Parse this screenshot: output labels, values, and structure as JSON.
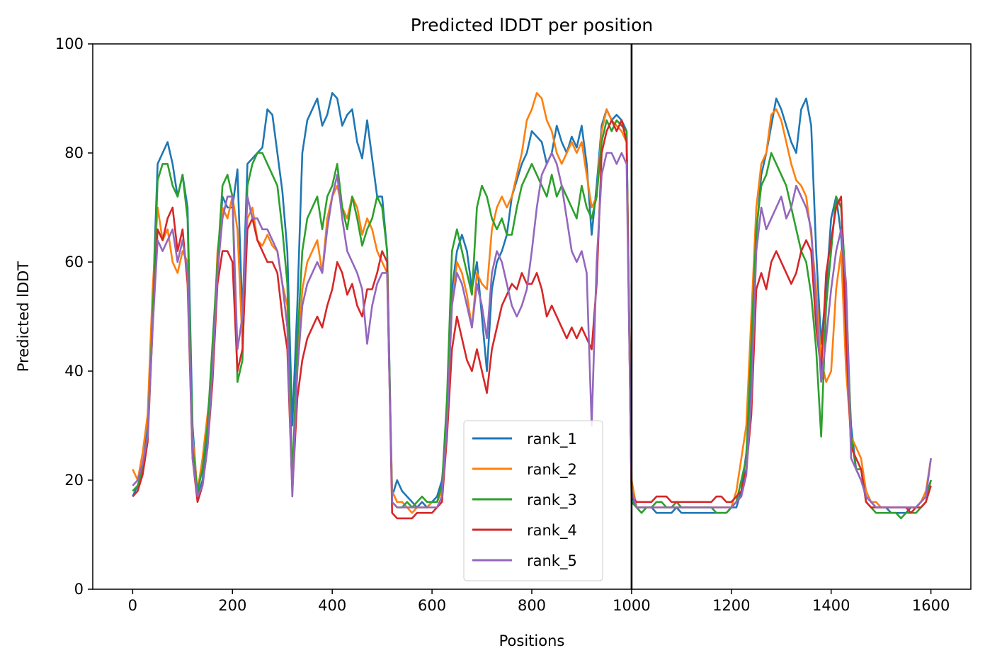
{
  "chart_data": {
    "type": "line",
    "title": "Predicted lDDT per position",
    "xlabel": "Positions",
    "ylabel": "Predicted lDDT",
    "xlim": [
      -80,
      1680
    ],
    "ylim": [
      0,
      100
    ],
    "x_ticks": [
      0,
      200,
      400,
      600,
      800,
      1000,
      1200,
      1400,
      1600
    ],
    "y_ticks": [
      0,
      20,
      40,
      60,
      80,
      100
    ],
    "grid": false,
    "legend_position": "lower center",
    "chain_break": {
      "x": 1000,
      "color": "#000000"
    },
    "x": [
      0,
      10,
      20,
      30,
      40,
      50,
      60,
      70,
      80,
      90,
      100,
      110,
      120,
      130,
      140,
      150,
      160,
      170,
      180,
      190,
      200,
      210,
      220,
      230,
      240,
      250,
      260,
      270,
      280,
      290,
      300,
      310,
      320,
      330,
      340,
      350,
      360,
      370,
      380,
      390,
      400,
      410,
      420,
      430,
      440,
      450,
      460,
      470,
      480,
      490,
      500,
      510,
      520,
      530,
      540,
      550,
      560,
      570,
      580,
      590,
      600,
      610,
      620,
      630,
      640,
      650,
      660,
      670,
      680,
      690,
      700,
      710,
      720,
      730,
      740,
      750,
      760,
      770,
      780,
      790,
      800,
      810,
      820,
      830,
      840,
      850,
      860,
      870,
      880,
      890,
      900,
      910,
      920,
      930,
      940,
      950,
      960,
      970,
      980,
      990,
      1000,
      1010,
      1020,
      1030,
      1040,
      1050,
      1060,
      1070,
      1080,
      1090,
      1100,
      1110,
      1120,
      1130,
      1140,
      1150,
      1160,
      1170,
      1180,
      1190,
      1200,
      1210,
      1220,
      1230,
      1240,
      1250,
      1260,
      1270,
      1280,
      1290,
      1300,
      1310,
      1320,
      1330,
      1340,
      1350,
      1360,
      1370,
      1380,
      1390,
      1400,
      1410,
      1420,
      1430,
      1440,
      1450,
      1460,
      1470,
      1480,
      1490,
      1500,
      1510,
      1520,
      1530,
      1540,
      1550,
      1560,
      1570,
      1580,
      1590,
      1600
    ],
    "series": [
      {
        "name": "rank_1",
        "color": "#1f77b4",
        "values": [
          17,
          19,
          22,
          30,
          52,
          78,
          80,
          82,
          78,
          72,
          76,
          70,
          30,
          17,
          20,
          28,
          42,
          60,
          72,
          70,
          70,
          77,
          50,
          78,
          79,
          80,
          81,
          88,
          87,
          80,
          73,
          62,
          30,
          52,
          80,
          86,
          88,
          90,
          85,
          87,
          91,
          90,
          85,
          87,
          88,
          82,
          79,
          86,
          79,
          72,
          72,
          62,
          17,
          20,
          18,
          17,
          16,
          15,
          16,
          15,
          16,
          17,
          20,
          30,
          55,
          62,
          65,
          62,
          55,
          60,
          50,
          40,
          55,
          60,
          62,
          65,
          72,
          75,
          78,
          80,
          84,
          83,
          82,
          78,
          80,
          85,
          82,
          80,
          83,
          81,
          85,
          78,
          65,
          74,
          85,
          88,
          86,
          87,
          86,
          84,
          17,
          15,
          15,
          15,
          15,
          14,
          14,
          14,
          14,
          15,
          14,
          14,
          14,
          14,
          14,
          14,
          14,
          14,
          14,
          14,
          15,
          15,
          18,
          25,
          40,
          65,
          76,
          80,
          85,
          90,
          88,
          85,
          82,
          80,
          88,
          90,
          85,
          62,
          45,
          55,
          68,
          72,
          65,
          50,
          30,
          22,
          20,
          17,
          16,
          15,
          15,
          15,
          14,
          14,
          14,
          14,
          15,
          15,
          16,
          17,
          20
        ]
      },
      {
        "name": "rank_2",
        "color": "#ff7f0e",
        "values": [
          22,
          20,
          25,
          32,
          55,
          70,
          64,
          66,
          60,
          58,
          62,
          60,
          28,
          18,
          24,
          32,
          40,
          62,
          70,
          68,
          72,
          66,
          45,
          68,
          70,
          64,
          63,
          65,
          63,
          62,
          56,
          52,
          20,
          40,
          55,
          60,
          62,
          64,
          58,
          68,
          72,
          74,
          70,
          68,
          72,
          70,
          65,
          68,
          66,
          62,
          60,
          58,
          18,
          16,
          16,
          15,
          14,
          15,
          15,
          15,
          16,
          16,
          18,
          32,
          52,
          60,
          58,
          54,
          48,
          58,
          56,
          55,
          66,
          70,
          72,
          70,
          72,
          76,
          80,
          86,
          88,
          91,
          90,
          86,
          84,
          80,
          78,
          80,
          82,
          80,
          82,
          76,
          70,
          72,
          84,
          88,
          86,
          85,
          84,
          82,
          20,
          15,
          15,
          15,
          15,
          15,
          15,
          15,
          15,
          15,
          15,
          15,
          15,
          15,
          15,
          15,
          15,
          15,
          15,
          15,
          15,
          18,
          24,
          30,
          50,
          70,
          78,
          80,
          87,
          88,
          86,
          82,
          78,
          75,
          74,
          72,
          65,
          55,
          42,
          38,
          40,
          55,
          62,
          40,
          28,
          26,
          24,
          18,
          16,
          16,
          15,
          15,
          15,
          15,
          15,
          15,
          15,
          15,
          16,
          18,
          24
        ]
      },
      {
        "name": "rank_3",
        "color": "#2ca02c",
        "values": [
          18,
          19,
          22,
          28,
          50,
          75,
          78,
          78,
          74,
          72,
          76,
          68,
          26,
          18,
          22,
          30,
          45,
          60,
          74,
          76,
          72,
          38,
          42,
          74,
          78,
          80,
          80,
          78,
          76,
          74,
          66,
          56,
          20,
          45,
          62,
          68,
          70,
          72,
          66,
          72,
          74,
          78,
          70,
          66,
          72,
          68,
          63,
          66,
          68,
          72,
          70,
          62,
          16,
          15,
          15,
          16,
          15,
          16,
          17,
          16,
          16,
          16,
          19,
          35,
          62,
          66,
          62,
          58,
          54,
          70,
          74,
          72,
          68,
          66,
          68,
          65,
          65,
          70,
          74,
          76,
          78,
          76,
          74,
          72,
          76,
          72,
          74,
          72,
          70,
          68,
          74,
          70,
          68,
          72,
          82,
          86,
          84,
          86,
          85,
          84,
          16,
          15,
          14,
          15,
          15,
          16,
          16,
          15,
          15,
          16,
          15,
          15,
          15,
          15,
          15,
          15,
          15,
          14,
          14,
          14,
          15,
          16,
          20,
          24,
          45,
          66,
          74,
          76,
          80,
          78,
          76,
          74,
          70,
          66,
          62,
          60,
          54,
          44,
          28,
          52,
          62,
          72,
          70,
          55,
          28,
          22,
          22,
          16,
          15,
          14,
          14,
          14,
          14,
          14,
          13,
          14,
          14,
          14,
          15,
          16,
          20
        ]
      },
      {
        "name": "rank_4",
        "color": "#d62728",
        "values": [
          17,
          18,
          21,
          27,
          48,
          66,
          64,
          68,
          70,
          62,
          66,
          56,
          24,
          16,
          19,
          26,
          38,
          56,
          62,
          62,
          60,
          40,
          44,
          66,
          68,
          64,
          62,
          60,
          60,
          58,
          50,
          44,
          18,
          35,
          42,
          46,
          48,
          50,
          48,
          52,
          55,
          60,
          58,
          54,
          56,
          52,
          50,
          55,
          55,
          58,
          62,
          60,
          14,
          13,
          13,
          13,
          13,
          14,
          14,
          14,
          14,
          15,
          16,
          28,
          44,
          50,
          46,
          42,
          40,
          44,
          40,
          36,
          44,
          48,
          52,
          54,
          56,
          55,
          58,
          56,
          56,
          58,
          55,
          50,
          52,
          50,
          48,
          46,
          48,
          46,
          48,
          46,
          44,
          56,
          80,
          84,
          86,
          84,
          86,
          82,
          17,
          16,
          16,
          16,
          16,
          17,
          17,
          17,
          16,
          16,
          16,
          16,
          16,
          16,
          16,
          16,
          16,
          17,
          17,
          16,
          16,
          17,
          18,
          22,
          32,
          55,
          58,
          55,
          60,
          62,
          60,
          58,
          56,
          58,
          62,
          64,
          62,
          48,
          40,
          58,
          64,
          70,
          72,
          46,
          26,
          24,
          22,
          16,
          15,
          15,
          15,
          15,
          15,
          15,
          15,
          15,
          14,
          15,
          15,
          16,
          19
        ]
      },
      {
        "name": "rank_5",
        "color": "#9467bd",
        "values": [
          19,
          20,
          23,
          28,
          48,
          64,
          62,
          64,
          66,
          60,
          64,
          58,
          24,
          17,
          19,
          26,
          40,
          58,
          68,
          72,
          72,
          44,
          50,
          72,
          68,
          68,
          66,
          66,
          64,
          62,
          56,
          48,
          17,
          40,
          52,
          56,
          58,
          60,
          58,
          66,
          72,
          76,
          68,
          62,
          60,
          58,
          55,
          45,
          52,
          56,
          58,
          58,
          16,
          15,
          15,
          15,
          15,
          15,
          15,
          15,
          15,
          15,
          17,
          30,
          52,
          58,
          56,
          52,
          48,
          56,
          52,
          46,
          58,
          62,
          60,
          56,
          52,
          50,
          52,
          55,
          62,
          70,
          76,
          78,
          80,
          78,
          74,
          68,
          62,
          60,
          62,
          58,
          30,
          60,
          76,
          80,
          80,
          78,
          80,
          78,
          18,
          15,
          15,
          15,
          15,
          15,
          15,
          15,
          15,
          15,
          15,
          15,
          15,
          15,
          15,
          15,
          15,
          15,
          15,
          15,
          15,
          16,
          17,
          21,
          35,
          62,
          70,
          66,
          68,
          70,
          72,
          68,
          70,
          74,
          72,
          70,
          66,
          52,
          38,
          46,
          55,
          62,
          66,
          56,
          24,
          22,
          20,
          17,
          16,
          15,
          15,
          15,
          15,
          15,
          15,
          15,
          15,
          15,
          16,
          17,
          24
        ]
      }
    ]
  }
}
